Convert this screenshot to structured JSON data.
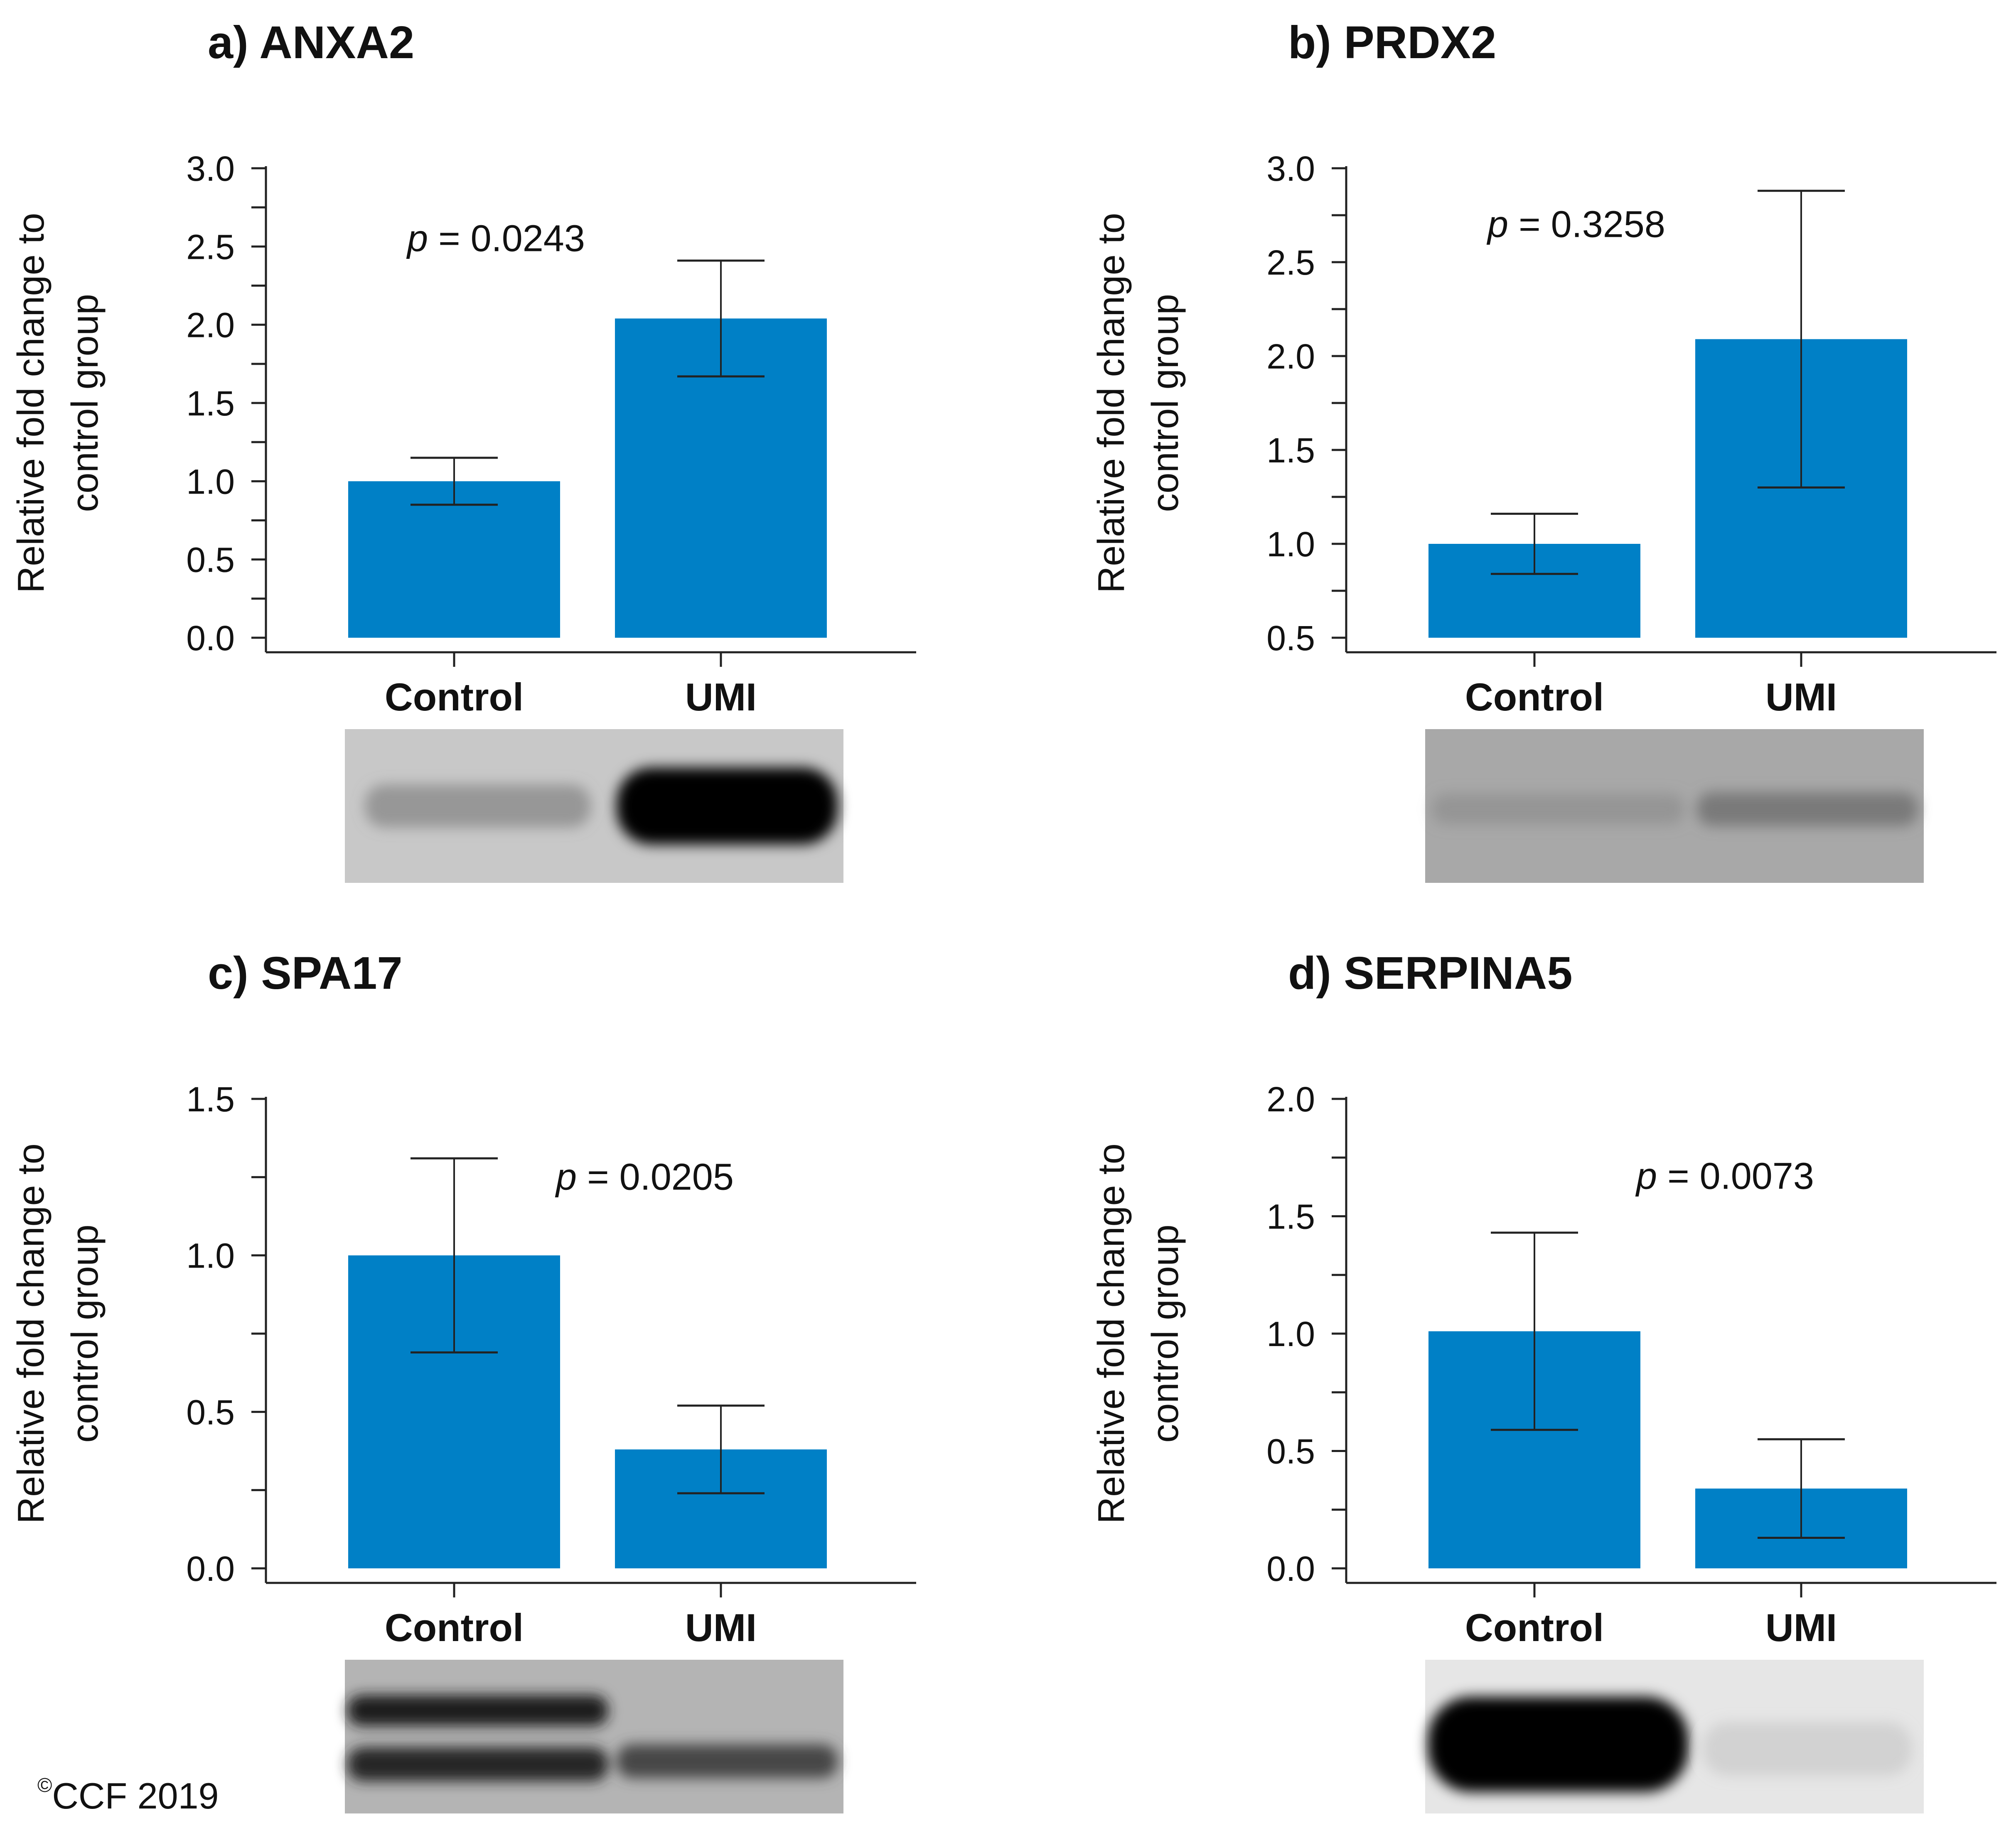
{
  "figure": {
    "copyright_symbol": "©",
    "copyright_text": "CCF 2019",
    "bar_color": "#0080c6"
  },
  "chart_data": [
    {
      "id": "a",
      "type": "bar",
      "title": "a) ANXA2",
      "ylabel": "Relative fold change to control group",
      "ylabel_lines": [
        "Relative fold change to",
        "control group"
      ],
      "categories": [
        "Control",
        "UMI"
      ],
      "values": [
        1.0,
        2.04
      ],
      "errors": [
        0.15,
        0.37
      ],
      "ylim": [
        0,
        3.0
      ],
      "yticks": [
        0.0,
        0.5,
        1.0,
        1.5,
        2.0,
        2.5,
        3.0
      ],
      "ytick_labels": [
        "0.0",
        "0.5",
        "1.0",
        "1.5",
        "2.0",
        "2.5",
        "3.0"
      ],
      "minor_step": 0.25,
      "annotation_prefix": "p",
      "annotation_value": " = 0.0243",
      "annotation_at": [
        1.0,
        2.55
      ],
      "blot": {
        "background": "#c8c8c8",
        "lanes": [
          {
            "bands": [
              {
                "y": 0.5,
                "intensity": 0.35,
                "height": 0.28,
                "width": 0.85
              }
            ]
          },
          {
            "bands": [
              {
                "y": 0.5,
                "intensity": 1.0,
                "height": 0.5,
                "width": 0.95
              }
            ]
          }
        ]
      }
    },
    {
      "id": "b",
      "type": "bar",
      "title": "b) PRDX2",
      "ylabel": "Relative fold change to control group",
      "ylabel_lines": [
        "Relative fold change to",
        "control group"
      ],
      "categories": [
        "Control",
        "UMI"
      ],
      "values": [
        1.0,
        2.09
      ],
      "errors": [
        0.16,
        0.79
      ],
      "ylim": [
        0.5,
        3.0
      ],
      "yticks": [
        0.5,
        1.0,
        1.5,
        2.0,
        2.5,
        3.0
      ],
      "ytick_labels": [
        "0.5",
        "1.0",
        "1.5",
        "2.0",
        "2.5",
        "3.0"
      ],
      "minor_step": 0.25,
      "annotation_prefix": "p",
      "annotation_value": " = 0.3258",
      "annotation_at": [
        1.0,
        2.7
      ],
      "blot": {
        "background": "#a8a8a8",
        "lanes": [
          {
            "bands": [
              {
                "y": 0.52,
                "intensity": 0.3,
                "height": 0.2,
                "width": 0.95
              }
            ]
          },
          {
            "bands": [
              {
                "y": 0.52,
                "intensity": 0.45,
                "height": 0.22,
                "width": 0.95
              }
            ]
          }
        ]
      }
    },
    {
      "id": "c",
      "type": "bar",
      "title": "c) SPA17",
      "ylabel": "Relative fold change to control group",
      "ylabel_lines": [
        "Relative fold change to",
        "control group"
      ],
      "categories": [
        "Control",
        "UMI"
      ],
      "values": [
        1.0,
        0.38
      ],
      "errors": [
        0.31,
        0.14
      ],
      "ylim": [
        0,
        1.5
      ],
      "yticks": [
        0.0,
        0.5,
        1.0,
        1.5
      ],
      "ytick_labels": [
        "0.0",
        "0.5",
        "1.0",
        "1.5"
      ],
      "minor_step": 0.25,
      "annotation_prefix": "p",
      "annotation_value": " = 0.0205",
      "annotation_at": [
        1.5,
        1.25
      ],
      "blot": {
        "background": "#b4b4b4",
        "lanes": [
          {
            "bands": [
              {
                "y": 0.33,
                "intensity": 0.85,
                "height": 0.2,
                "width": 0.98
              },
              {
                "y": 0.68,
                "intensity": 0.8,
                "height": 0.22,
                "width": 0.98
              }
            ]
          },
          {
            "bands": [
              {
                "y": 0.66,
                "intensity": 0.65,
                "height": 0.22,
                "width": 0.95
              }
            ]
          }
        ]
      }
    },
    {
      "id": "d",
      "type": "bar",
      "title": "d) SERPINA5",
      "ylabel": "Relative fold change to control group",
      "ylabel_lines": [
        "Relative fold change to",
        "control group"
      ],
      "categories": [
        "Control",
        "UMI"
      ],
      "values": [
        1.01,
        0.34
      ],
      "errors": [
        0.42,
        0.21
      ],
      "ylim": [
        0,
        2.0
      ],
      "yticks": [
        0.0,
        0.5,
        1.0,
        1.5,
        2.0
      ],
      "ytick_labels": [
        "0.0",
        "0.5",
        "1.0",
        "1.5",
        "2.0"
      ],
      "minor_step": 0.25,
      "annotation_prefix": "p",
      "annotation_value": " = 0.0073",
      "annotation_at": [
        1.5,
        1.67
      ],
      "blot": {
        "background": "#e6e6e6",
        "lanes": [
          {
            "bands": [
              {
                "y": 0.55,
                "intensity": 1.0,
                "height": 0.62,
                "width": 0.98
              }
            ]
          },
          {
            "bands": [
              {
                "y": 0.58,
                "intensity": 0.08,
                "height": 0.35,
                "width": 0.9
              }
            ]
          }
        ]
      }
    }
  ]
}
